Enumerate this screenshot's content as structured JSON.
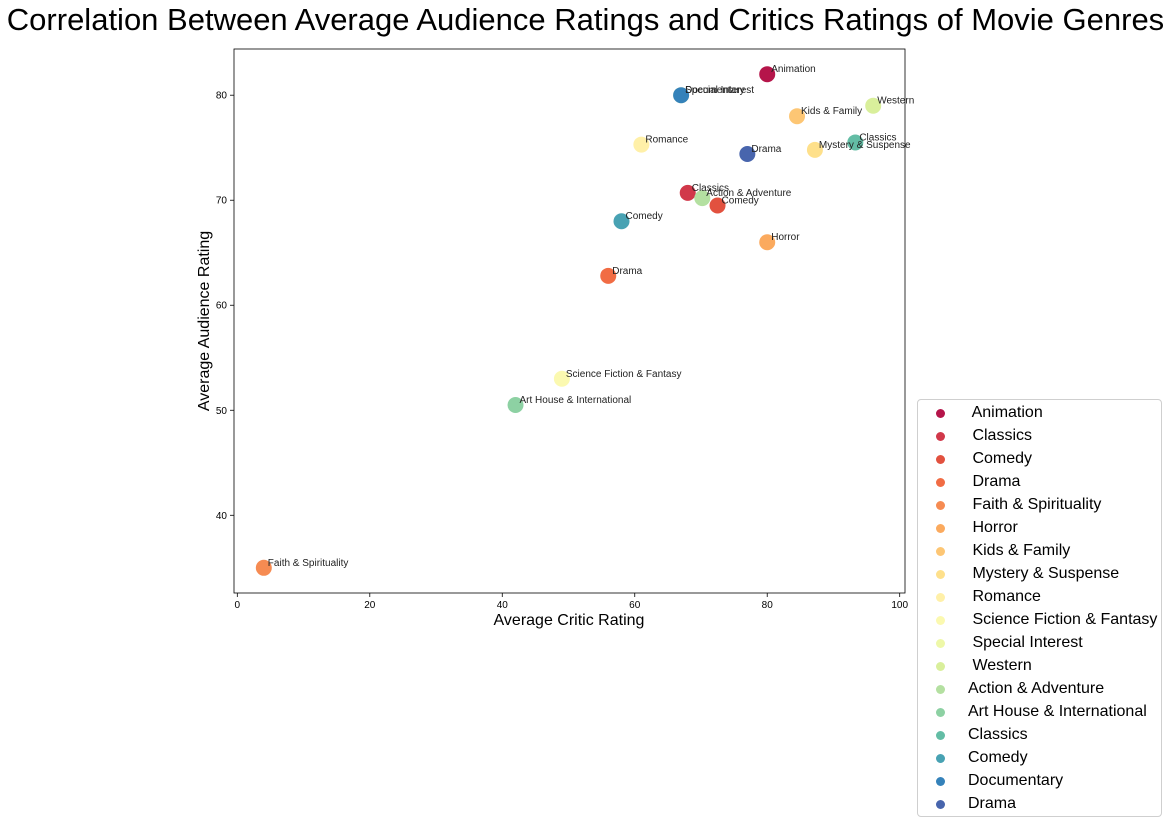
{
  "chart_data": {
    "type": "scatter",
    "title": "Correlation Between Average Audience Ratings and Critics Ratings of Movie Genres",
    "xlabel": "Average Critic Rating",
    "ylabel": "Average Audience Rating",
    "xlim": [
      -0.5,
      100.8
    ],
    "ylim": [
      32.6,
      84.4
    ],
    "xticks": [
      0,
      20,
      40,
      60,
      80,
      100
    ],
    "yticks": [
      40,
      50,
      60,
      70,
      80
    ],
    "grid": false,
    "legend_position": "lower-right outside",
    "points": [
      {
        "label": " Animation",
        "x": 80,
        "y": 82,
        "color": "#b5154a"
      },
      {
        "label": " Classics",
        "x": 68,
        "y": 70.7,
        "color": "#d1384a"
      },
      {
        "label": " Comedy",
        "x": 72.5,
        "y": 69.5,
        "color": "#e2513f"
      },
      {
        "label": " Drama",
        "x": 56,
        "y": 62.8,
        "color": "#f16c44"
      },
      {
        "label": " Faith & Spirituality",
        "x": 4,
        "y": 35,
        "color": "#f68b52"
      },
      {
        "label": " Horror",
        "x": 80,
        "y": 66,
        "color": "#fbaa5e"
      },
      {
        "label": " Kids & Family",
        "x": 84.5,
        "y": 78,
        "color": "#fdc674"
      },
      {
        "label": " Mystery & Suspense",
        "x": 87.2,
        "y": 74.8,
        "color": "#fee08b"
      },
      {
        "label": " Romance",
        "x": 61,
        "y": 75.3,
        "color": "#fff0a8"
      },
      {
        "label": " Science Fiction & Fantasy",
        "x": 49,
        "y": 53,
        "color": "#fbf9b0"
      },
      {
        "label": " Special Interest",
        "x": 67,
        "y": 80,
        "color": "#eef8a8"
      },
      {
        "label": " Western",
        "x": 96,
        "y": 79,
        "color": "#d9ef9b"
      },
      {
        "label": "Action & Adventure",
        "x": 70.2,
        "y": 70.2,
        "color": "#b4e0a1"
      },
      {
        "label": "Art House & International",
        "x": 42,
        "y": 50.5,
        "color": "#8dd1a3"
      },
      {
        "label": "Classics",
        "x": 93.3,
        "y": 75.5,
        "color": "#63bda5"
      },
      {
        "label": "Comedy",
        "x": 58,
        "y": 68,
        "color": "#48a2b3"
      },
      {
        "label": "Documentary",
        "x": 67,
        "y": 80,
        "color": "#3582ba"
      },
      {
        "label": "Drama",
        "x": 77,
        "y": 74.4,
        "color": "#4865ad"
      }
    ]
  }
}
